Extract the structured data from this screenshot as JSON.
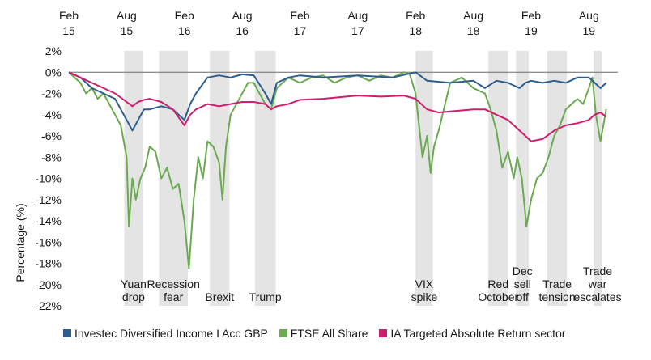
{
  "chart_data": {
    "type": "line",
    "title": "",
    "xlabel": "",
    "ylabel": "Percentage (%)",
    "ylim": [
      -22,
      2
    ],
    "yticks": [
      "2%",
      "0%",
      "-2%",
      "-4%",
      "-6%",
      "-8%",
      "-10%",
      "-12%",
      "-14%",
      "-16%",
      "-18%",
      "-20%",
      "-22%"
    ],
    "ytick_values": [
      2,
      0,
      -2,
      -4,
      -6,
      -8,
      -10,
      -12,
      -14,
      -16,
      -18,
      -20,
      -22
    ],
    "xlim": [
      2015.0,
      2019.75
    ],
    "xticks": [
      {
        "pos": 2015.0,
        "line1": "Feb",
        "line2": "15"
      },
      {
        "pos": 2015.5,
        "line1": "Aug",
        "line2": "15"
      },
      {
        "pos": 2016.0,
        "line1": "Feb",
        "line2": "16"
      },
      {
        "pos": 2016.5,
        "line1": "Aug",
        "line2": "16"
      },
      {
        "pos": 2017.0,
        "line1": "Feb",
        "line2": "17"
      },
      {
        "pos": 2017.5,
        "line1": "Aug",
        "line2": "17"
      },
      {
        "pos": 2018.0,
        "line1": "Feb",
        "line2": "18"
      },
      {
        "pos": 2018.5,
        "line1": "Aug",
        "line2": "18"
      },
      {
        "pos": 2019.0,
        "line1": "Feb",
        "line2": "19"
      },
      {
        "pos": 2019.5,
        "line1": "Aug",
        "line2": "19"
      }
    ],
    "shaded_periods": [
      {
        "start": 2015.48,
        "end": 2015.64,
        "lines": [
          "Yuan",
          "drop"
        ]
      },
      {
        "start": 2015.78,
        "end": 2016.03,
        "lines": [
          "Recession",
          "fear"
        ]
      },
      {
        "start": 2016.22,
        "end": 2016.39,
        "lines": [
          "Brexit"
        ]
      },
      {
        "start": 2016.61,
        "end": 2016.79,
        "lines": [
          "Trump"
        ]
      },
      {
        "start": 2018.0,
        "end": 2018.15,
        "lines": [
          "VIX",
          "spike"
        ]
      },
      {
        "start": 2018.63,
        "end": 2018.8,
        "lines": [
          "Red",
          "October"
        ]
      },
      {
        "start": 2018.87,
        "end": 2018.98,
        "lines": [
          "Dec",
          "sell",
          "off"
        ]
      },
      {
        "start": 2019.14,
        "end": 2019.31,
        "lines": [
          "Trade",
          "tension"
        ]
      },
      {
        "start": 2019.54,
        "end": 2019.61,
        "lines": [
          "Trade",
          "war",
          "escalates"
        ]
      }
    ],
    "series": [
      {
        "name": "Investec Diversified Income I Acc GBP",
        "color": "#2d5d8e",
        "x": [
          2015.0,
          2015.1,
          2015.2,
          2015.3,
          2015.4,
          2015.45,
          2015.5,
          2015.55,
          2015.6,
          2015.65,
          2015.7,
          2015.8,
          2015.9,
          2016.0,
          2016.05,
          2016.1,
          2016.2,
          2016.3,
          2016.4,
          2016.5,
          2016.6,
          2016.7,
          2016.75,
          2016.8,
          2016.9,
          2017.0,
          2017.2,
          2017.5,
          2017.8,
          2018.0,
          2018.1,
          2018.3,
          2018.5,
          2018.6,
          2018.7,
          2018.8,
          2018.9,
          2018.95,
          2019.0,
          2019.1,
          2019.2,
          2019.3,
          2019.4,
          2019.5,
          2019.55,
          2019.6,
          2019.65
        ],
        "y": [
          0.0,
          -0.5,
          -1.5,
          -2.0,
          -2.5,
          -3.5,
          -4.5,
          -5.5,
          -4.5,
          -3.5,
          -3.5,
          -3.2,
          -3.5,
          -4.5,
          -3.0,
          -2.0,
          -0.5,
          -0.3,
          -0.5,
          -0.2,
          -0.3,
          -2.0,
          -3.0,
          -1.0,
          -0.5,
          -0.3,
          -0.5,
          -0.3,
          -0.5,
          0.0,
          -0.8,
          -1.0,
          -0.8,
          -1.5,
          -0.8,
          -1.0,
          -1.5,
          -1.0,
          -0.8,
          -1.0,
          -0.8,
          -1.0,
          -0.5,
          -0.5,
          -1.0,
          -1.5,
          -1.0
        ]
      },
      {
        "name": "FTSE All Share",
        "color": "#6aaa50",
        "x": [
          2015.0,
          2015.05,
          2015.1,
          2015.15,
          2015.2,
          2015.25,
          2015.3,
          2015.35,
          2015.4,
          2015.45,
          2015.5,
          2015.52,
          2015.55,
          2015.58,
          2015.62,
          2015.66,
          2015.7,
          2015.75,
          2015.8,
          2015.85,
          2015.9,
          2015.95,
          2016.0,
          2016.04,
          2016.08,
          2016.12,
          2016.16,
          2016.2,
          2016.25,
          2016.3,
          2016.33,
          2016.36,
          2016.4,
          2016.45,
          2016.5,
          2016.55,
          2016.6,
          2016.65,
          2016.7,
          2016.75,
          2016.8,
          2016.9,
          2017.0,
          2017.1,
          2017.2,
          2017.3,
          2017.4,
          2017.5,
          2017.6,
          2017.7,
          2017.8,
          2017.9,
          2017.95,
          2018.0,
          2018.03,
          2018.06,
          2018.1,
          2018.13,
          2018.16,
          2018.2,
          2018.3,
          2018.4,
          2018.5,
          2018.6,
          2018.65,
          2018.7,
          2018.75,
          2018.8,
          2018.85,
          2018.88,
          2018.92,
          2018.96,
          2019.0,
          2019.05,
          2019.1,
          2019.15,
          2019.2,
          2019.25,
          2019.3,
          2019.35,
          2019.4,
          2019.45,
          2019.5,
          2019.53,
          2019.56,
          2019.6,
          2019.65
        ],
        "y": [
          0.0,
          -0.5,
          -1.0,
          -2.0,
          -1.5,
          -2.5,
          -2.0,
          -3.0,
          -4.0,
          -5.0,
          -8.0,
          -14.5,
          -10.0,
          -12.0,
          -10.0,
          -9.0,
          -7.0,
          -7.5,
          -10.0,
          -9.0,
          -11.0,
          -10.5,
          -14.0,
          -18.5,
          -12.0,
          -8.0,
          -10.0,
          -6.5,
          -7.0,
          -8.5,
          -12.0,
          -7.0,
          -4.0,
          -3.0,
          -2.0,
          -1.0,
          -1.0,
          -2.0,
          -3.0,
          -3.5,
          -1.5,
          -0.5,
          -1.0,
          -0.5,
          -0.3,
          -1.0,
          -0.5,
          -0.3,
          -0.8,
          -0.3,
          -0.5,
          0.0,
          -0.2,
          -2.0,
          -5.0,
          -8.0,
          -6.0,
          -9.5,
          -7.0,
          -5.5,
          -1.0,
          -0.5,
          -1.5,
          -2.0,
          -3.5,
          -5.5,
          -9.0,
          -7.5,
          -10.0,
          -8.0,
          -10.0,
          -14.5,
          -12.0,
          -10.0,
          -9.5,
          -8.0,
          -6.0,
          -5.0,
          -3.5,
          -3.0,
          -2.5,
          -3.0,
          -1.5,
          -0.5,
          -4.0,
          -6.5,
          -3.5
        ]
      },
      {
        "name": "IA Targeted Absolute Return sector",
        "color": "#d01e6e",
        "x": [
          2015.0,
          2015.1,
          2015.2,
          2015.3,
          2015.4,
          2015.5,
          2015.55,
          2015.6,
          2015.65,
          2015.7,
          2015.8,
          2015.9,
          2016.0,
          2016.05,
          2016.1,
          2016.2,
          2016.3,
          2016.4,
          2016.5,
          2016.6,
          2016.7,
          2016.75,
          2016.8,
          2016.9,
          2017.0,
          2017.2,
          2017.4,
          2017.5,
          2017.7,
          2017.9,
          2018.0,
          2018.1,
          2018.2,
          2018.3,
          2018.5,
          2018.6,
          2018.7,
          2018.8,
          2018.9,
          2019.0,
          2019.1,
          2019.2,
          2019.3,
          2019.4,
          2019.5,
          2019.55,
          2019.6,
          2019.65
        ],
        "y": [
          0.0,
          -0.5,
          -1.0,
          -1.5,
          -2.0,
          -2.8,
          -3.2,
          -2.8,
          -2.6,
          -2.5,
          -2.8,
          -3.5,
          -5.0,
          -4.0,
          -3.5,
          -3.0,
          -3.2,
          -3.0,
          -2.8,
          -2.8,
          -3.0,
          -3.5,
          -3.2,
          -3.0,
          -2.6,
          -2.5,
          -2.3,
          -2.2,
          -2.3,
          -2.2,
          -2.5,
          -3.5,
          -3.8,
          -3.7,
          -3.5,
          -3.5,
          -4.0,
          -4.5,
          -5.5,
          -6.5,
          -6.3,
          -5.5,
          -5.0,
          -4.8,
          -4.5,
          -4.0,
          -3.8,
          -4.2
        ]
      }
    ]
  }
}
